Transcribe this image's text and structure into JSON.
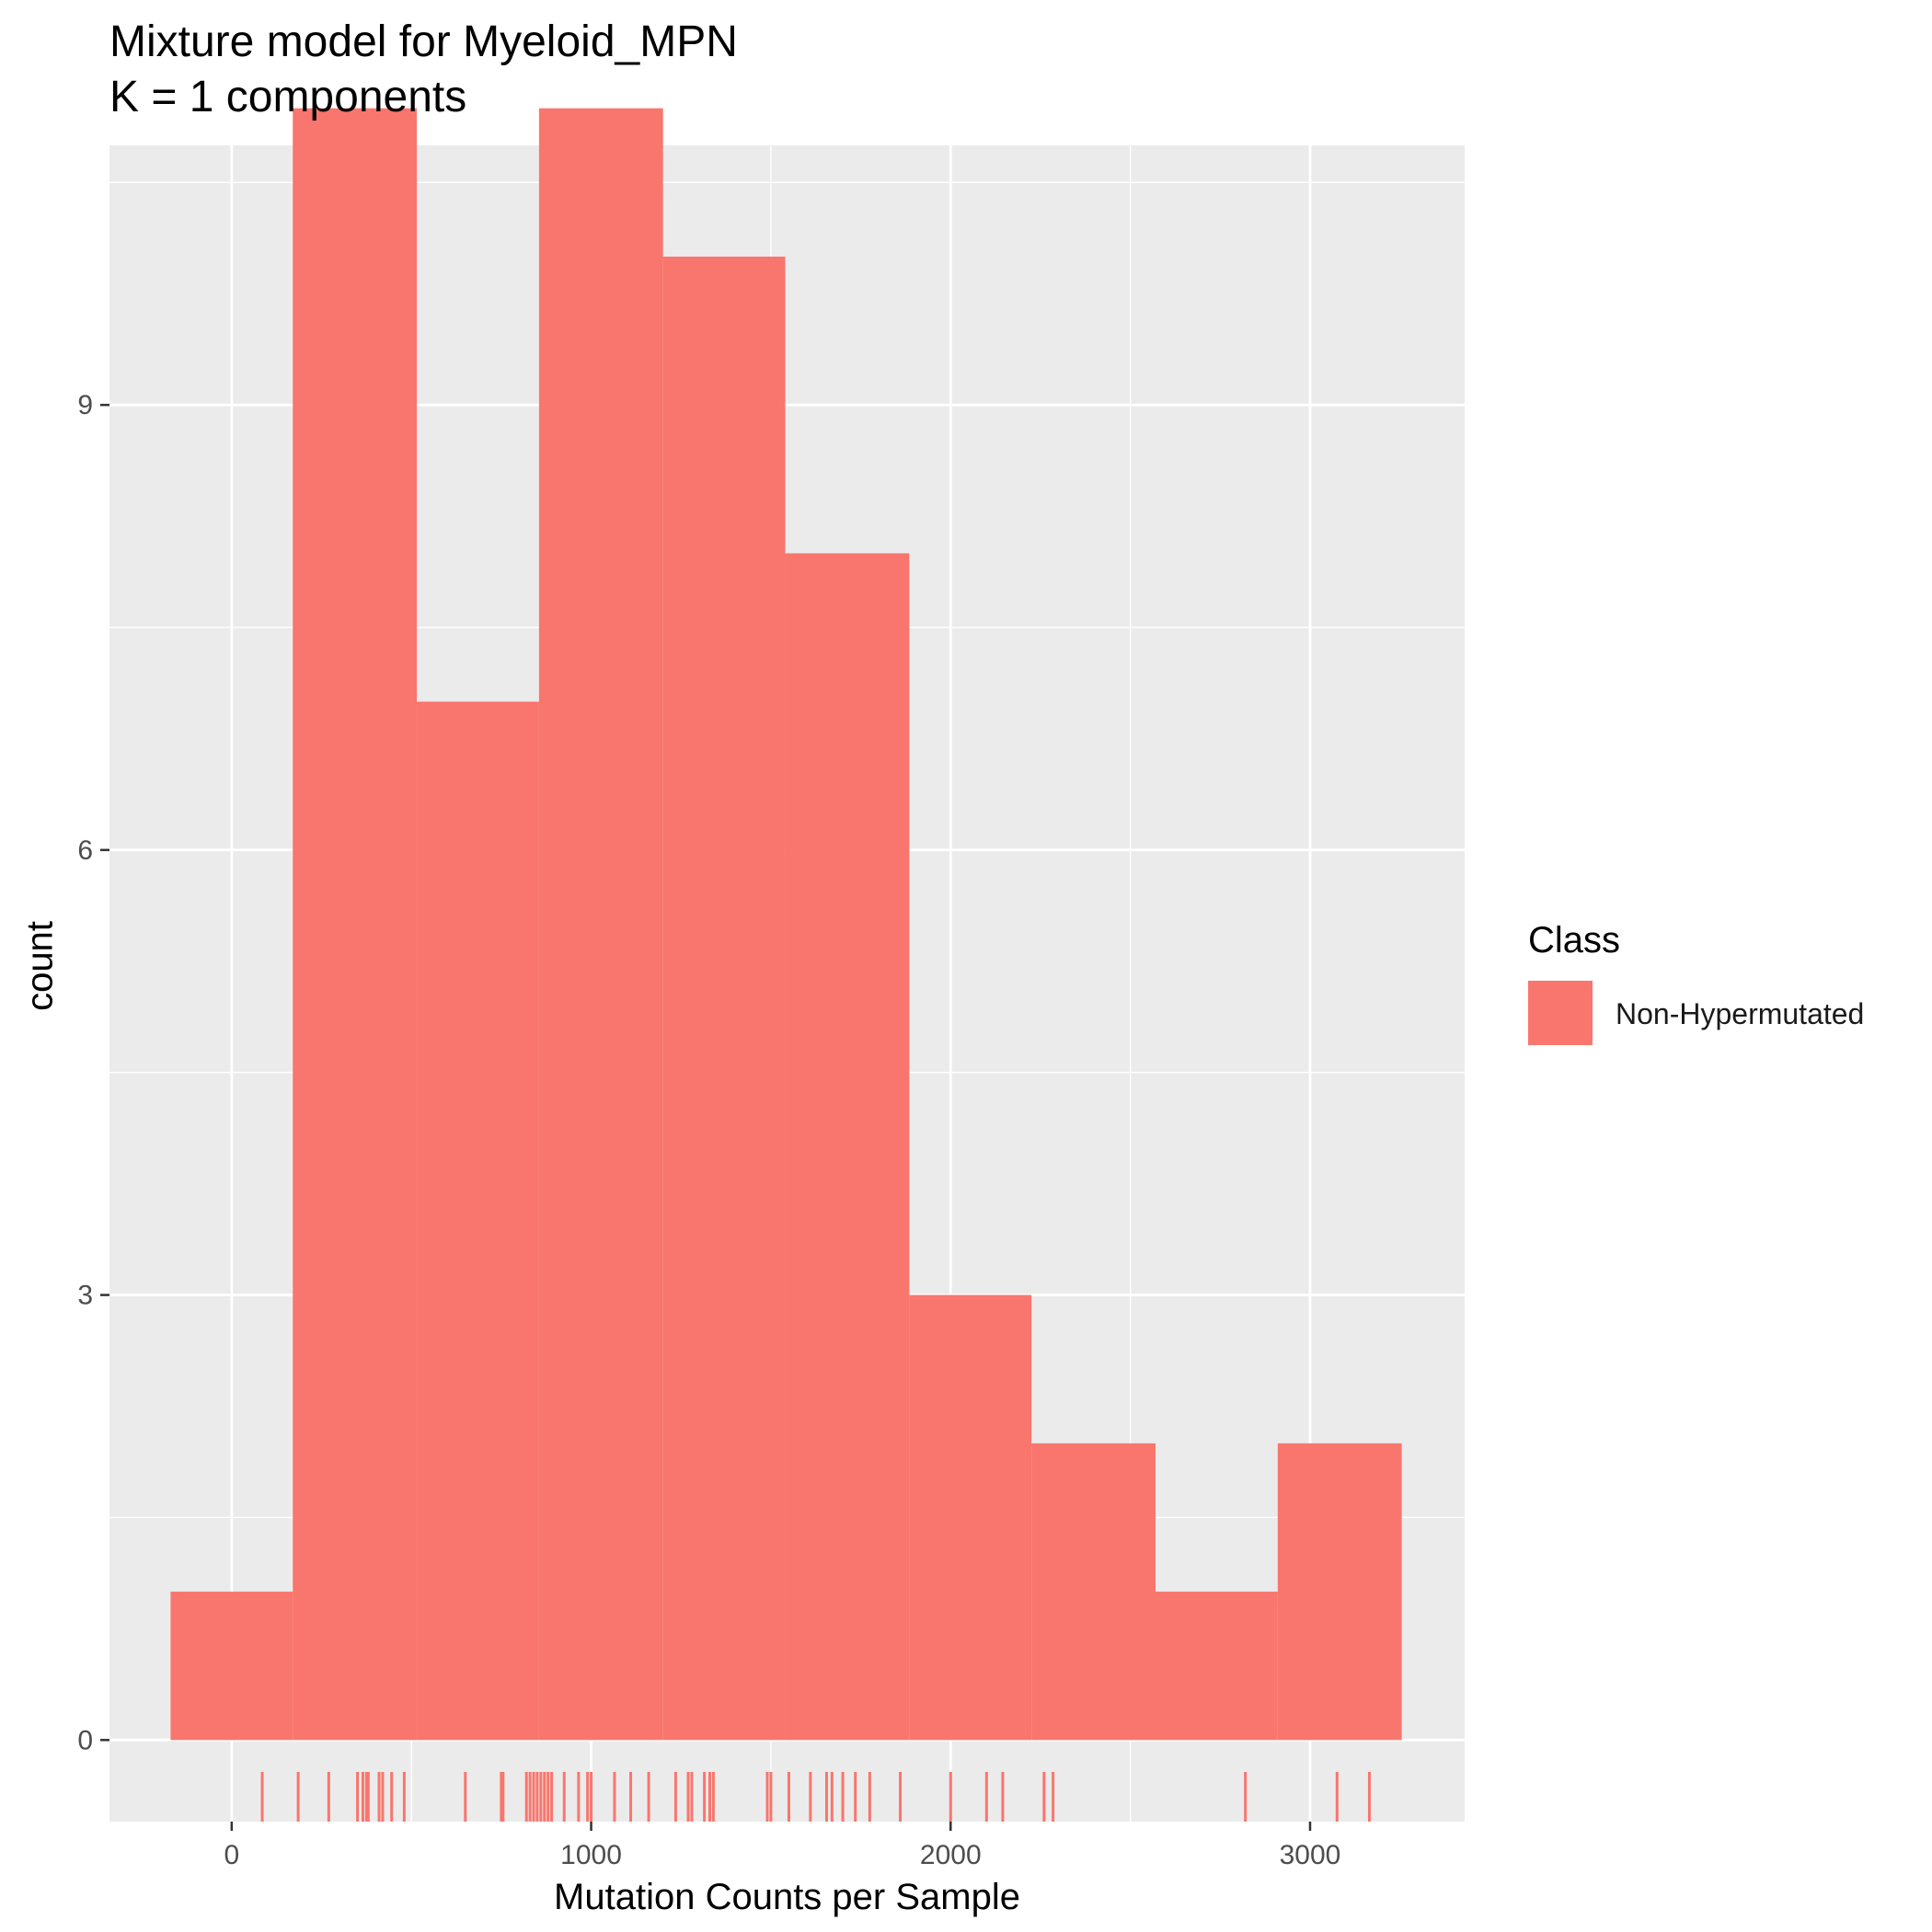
{
  "colors": {
    "panel_background": "#EBEBEB",
    "grid": "#FFFFFF",
    "fill": "#F8766D",
    "axis_text": "#4D4D4D"
  },
  "chart_data": {
    "type": "histogram",
    "title": "Mixture model for Myeloid_MPN",
    "subtitle": "K = 1 components",
    "xlabel": "Mutation Counts per Sample",
    "ylabel": "count",
    "xlim": [
      -340,
      3430
    ],
    "ylim": [
      -0.55,
      10.75
    ],
    "x_ticks": [
      0,
      1000,
      2000,
      3000
    ],
    "x_tick_labels": [
      "0",
      "1000",
      "2000",
      "3000"
    ],
    "y_ticks": [
      0,
      3,
      6,
      9
    ],
    "y_tick_labels": [
      "0",
      "3",
      "6",
      "9"
    ],
    "grid": true,
    "legend": {
      "title": "Class",
      "position": "right",
      "entries": [
        {
          "label": "Non-Hypermutated",
          "color": "#F8766D"
        }
      ]
    },
    "bins": [
      {
        "x0": -170,
        "x1": 170,
        "count": 1
      },
      {
        "x0": 170,
        "x1": 515,
        "count": 11
      },
      {
        "x0": 515,
        "x1": 855,
        "count": 7
      },
      {
        "x0": 855,
        "x1": 1200,
        "count": 11
      },
      {
        "x0": 1200,
        "x1": 1540,
        "count": 10
      },
      {
        "x0": 1540,
        "x1": 1885,
        "count": 8
      },
      {
        "x0": 1885,
        "x1": 2225,
        "count": 3
      },
      {
        "x0": 2225,
        "x1": 2570,
        "count": 2
      },
      {
        "x0": 2570,
        "x1": 2910,
        "count": 1
      },
      {
        "x0": 2910,
        "x1": 3255,
        "count": 2
      }
    ],
    "rug": [
      85,
      185,
      270,
      350,
      365,
      375,
      380,
      410,
      420,
      445,
      480,
      650,
      750,
      755,
      820,
      830,
      840,
      850,
      860,
      870,
      880,
      890,
      925,
      965,
      990,
      1000,
      1065,
      1110,
      1160,
      1235,
      1270,
      1280,
      1315,
      1330,
      1340,
      1490,
      1500,
      1550,
      1610,
      1655,
      1670,
      1700,
      1735,
      1775,
      1860,
      2000,
      2100,
      2145,
      2260,
      2285,
      2820,
      3075,
      3165
    ]
  }
}
